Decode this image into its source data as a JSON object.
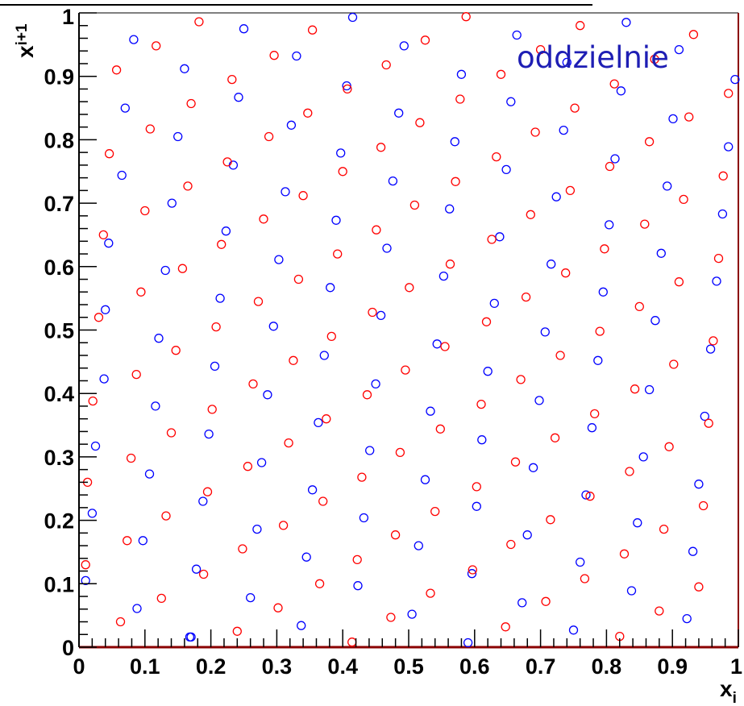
{
  "chart_data": {
    "type": "scatter",
    "title": "",
    "xlabel": "x",
    "xlabel_sub": "i",
    "ylabel": "x",
    "ylabel_sub": "i+1",
    "xlim": [
      0,
      1
    ],
    "ylim": [
      0,
      1
    ],
    "annotation": "oddzielnie",
    "x_ticks": [
      {
        "value": 0,
        "label": "0"
      },
      {
        "value": 0.1,
        "label": "0.1"
      },
      {
        "value": 0.2,
        "label": "0.2"
      },
      {
        "value": 0.3,
        "label": "0.3"
      },
      {
        "value": 0.4,
        "label": "0.4"
      },
      {
        "value": 0.5,
        "label": "0.5"
      },
      {
        "value": 0.6,
        "label": "0.6"
      },
      {
        "value": 0.7,
        "label": "0.7"
      },
      {
        "value": 0.8,
        "label": "0.8"
      },
      {
        "value": 0.9,
        "label": "0.9"
      },
      {
        "value": 1,
        "label": "1"
      }
    ],
    "y_ticks": [
      {
        "value": 0,
        "label": "0"
      },
      {
        "value": 0.1,
        "label": "0.1"
      },
      {
        "value": 0.2,
        "label": "0.2"
      },
      {
        "value": 0.3,
        "label": "0.3"
      },
      {
        "value": 0.4,
        "label": "0.4"
      },
      {
        "value": 0.5,
        "label": "0.5"
      },
      {
        "value": 0.6,
        "label": "0.6"
      },
      {
        "value": 0.7,
        "label": "0.7"
      },
      {
        "value": 0.8,
        "label": "0.8"
      },
      {
        "value": 0.9,
        "label": "0.9"
      },
      {
        "value": 1,
        "label": "1"
      }
    ],
    "series": [
      {
        "color": "#0000ff",
        "marker": "open-circle",
        "points": [
          [
            0.083,
            0.958
          ],
          [
            0.07,
            0.85
          ],
          [
            0.065,
            0.744
          ],
          [
            0.045,
            0.637
          ],
          [
            0.04,
            0.532
          ],
          [
            0.038,
            0.423
          ],
          [
            0.025,
            0.317
          ],
          [
            0.02,
            0.211
          ],
          [
            0.01,
            0.105
          ],
          [
            0.16,
            0.912
          ],
          [
            0.15,
            0.805
          ],
          [
            0.141,
            0.7
          ],
          [
            0.131,
            0.594
          ],
          [
            0.121,
            0.487
          ],
          [
            0.116,
            0.38
          ],
          [
            0.107,
            0.273
          ],
          [
            0.097,
            0.168
          ],
          [
            0.088,
            0.061
          ],
          [
            0.17,
            0.016
          ],
          [
            0.25,
            0.975
          ],
          [
            0.242,
            0.867
          ],
          [
            0.234,
            0.76
          ],
          [
            0.223,
            0.656
          ],
          [
            0.214,
            0.55
          ],
          [
            0.206,
            0.443
          ],
          [
            0.197,
            0.336
          ],
          [
            0.188,
            0.23
          ],
          [
            0.178,
            0.123
          ],
          [
            0.168,
            0.016
          ],
          [
            0.33,
            0.932
          ],
          [
            0.322,
            0.823
          ],
          [
            0.313,
            0.718
          ],
          [
            0.303,
            0.611
          ],
          [
            0.295,
            0.506
          ],
          [
            0.286,
            0.398
          ],
          [
            0.277,
            0.291
          ],
          [
            0.27,
            0.186
          ],
          [
            0.26,
            0.078
          ],
          [
            0.415,
            0.993
          ],
          [
            0.406,
            0.885
          ],
          [
            0.397,
            0.779
          ],
          [
            0.39,
            0.673
          ],
          [
            0.381,
            0.567
          ],
          [
            0.372,
            0.46
          ],
          [
            0.363,
            0.354
          ],
          [
            0.354,
            0.248
          ],
          [
            0.345,
            0.142
          ],
          [
            0.337,
            0.034
          ],
          [
            0.493,
            0.948
          ],
          [
            0.485,
            0.842
          ],
          [
            0.476,
            0.735
          ],
          [
            0.467,
            0.629
          ],
          [
            0.458,
            0.523
          ],
          [
            0.45,
            0.415
          ],
          [
            0.441,
            0.31
          ],
          [
            0.432,
            0.204
          ],
          [
            0.423,
            0.097
          ],
          [
            0.58,
            0.903
          ],
          [
            0.57,
            0.797
          ],
          [
            0.562,
            0.691
          ],
          [
            0.553,
            0.585
          ],
          [
            0.543,
            0.478
          ],
          [
            0.533,
            0.372
          ],
          [
            0.525,
            0.264
          ],
          [
            0.515,
            0.16
          ],
          [
            0.505,
            0.052
          ],
          [
            0.59,
            0.007
          ],
          [
            0.664,
            0.965
          ],
          [
            0.655,
            0.86
          ],
          [
            0.648,
            0.753
          ],
          [
            0.638,
            0.647
          ],
          [
            0.63,
            0.542
          ],
          [
            0.62,
            0.435
          ],
          [
            0.611,
            0.327
          ],
          [
            0.603,
            0.222
          ],
          [
            0.596,
            0.116
          ],
          [
            0.74,
            0.922
          ],
          [
            0.735,
            0.815
          ],
          [
            0.724,
            0.71
          ],
          [
            0.716,
            0.604
          ],
          [
            0.707,
            0.497
          ],
          [
            0.698,
            0.389
          ],
          [
            0.689,
            0.283
          ],
          [
            0.68,
            0.177
          ],
          [
            0.672,
            0.07
          ],
          [
            0.83,
            0.985
          ],
          [
            0.822,
            0.877
          ],
          [
            0.813,
            0.77
          ],
          [
            0.804,
            0.666
          ],
          [
            0.795,
            0.56
          ],
          [
            0.787,
            0.452
          ],
          [
            0.778,
            0.346
          ],
          [
            0.769,
            0.24
          ],
          [
            0.76,
            0.134
          ],
          [
            0.75,
            0.027
          ],
          [
            0.91,
            0.942
          ],
          [
            0.901,
            0.833
          ],
          [
            0.892,
            0.727
          ],
          [
            0.883,
            0.621
          ],
          [
            0.874,
            0.515
          ],
          [
            0.865,
            0.406
          ],
          [
            0.856,
            0.3
          ],
          [
            0.847,
            0.196
          ],
          [
            0.838,
            0.089
          ],
          [
            0.995,
            0.895
          ],
          [
            0.985,
            0.789
          ],
          [
            0.976,
            0.683
          ],
          [
            0.967,
            0.577
          ],
          [
            0.958,
            0.47
          ],
          [
            0.949,
            0.364
          ],
          [
            0.94,
            0.257
          ],
          [
            0.931,
            0.151
          ],
          [
            0.922,
            0.045
          ]
        ]
      },
      {
        "color": "#ff0000",
        "marker": "open-circle",
        "points": [
          [
            0.01,
            0.13
          ],
          [
            0.013,
            0.26
          ],
          [
            0.021,
            0.388
          ],
          [
            0.03,
            0.52
          ],
          [
            0.037,
            0.65
          ],
          [
            0.046,
            0.778
          ],
          [
            0.057,
            0.91
          ],
          [
            0.063,
            0.04
          ],
          [
            0.073,
            0.168
          ],
          [
            0.079,
            0.298
          ],
          [
            0.087,
            0.43
          ],
          [
            0.094,
            0.56
          ],
          [
            0.1,
            0.688
          ],
          [
            0.108,
            0.817
          ],
          [
            0.117,
            0.948
          ],
          [
            0.125,
            0.077
          ],
          [
            0.132,
            0.207
          ],
          [
            0.14,
            0.338
          ],
          [
            0.147,
            0.468
          ],
          [
            0.157,
            0.597
          ],
          [
            0.165,
            0.727
          ],
          [
            0.17,
            0.857
          ],
          [
            0.182,
            0.986
          ],
          [
            0.189,
            0.115
          ],
          [
            0.195,
            0.245
          ],
          [
            0.202,
            0.375
          ],
          [
            0.208,
            0.505
          ],
          [
            0.216,
            0.635
          ],
          [
            0.225,
            0.765
          ],
          [
            0.232,
            0.895
          ],
          [
            0.24,
            0.025
          ],
          [
            0.248,
            0.155
          ],
          [
            0.256,
            0.285
          ],
          [
            0.264,
            0.415
          ],
          [
            0.272,
            0.545
          ],
          [
            0.28,
            0.675
          ],
          [
            0.288,
            0.805
          ],
          [
            0.296,
            0.933
          ],
          [
            0.302,
            0.062
          ],
          [
            0.31,
            0.192
          ],
          [
            0.318,
            0.322
          ],
          [
            0.325,
            0.452
          ],
          [
            0.333,
            0.58
          ],
          [
            0.34,
            0.712
          ],
          [
            0.347,
            0.842
          ],
          [
            0.354,
            0.973
          ],
          [
            0.365,
            0.1
          ],
          [
            0.37,
            0.23
          ],
          [
            0.375,
            0.36
          ],
          [
            0.383,
            0.49
          ],
          [
            0.392,
            0.62
          ],
          [
            0.4,
            0.75
          ],
          [
            0.407,
            0.88
          ],
          [
            0.414,
            0.008
          ],
          [
            0.422,
            0.138
          ],
          [
            0.429,
            0.268
          ],
          [
            0.437,
            0.398
          ],
          [
            0.445,
            0.528
          ],
          [
            0.451,
            0.658
          ],
          [
            0.458,
            0.788
          ],
          [
            0.466,
            0.918
          ],
          [
            0.473,
            0.047
          ],
          [
            0.48,
            0.177
          ],
          [
            0.487,
            0.307
          ],
          [
            0.495,
            0.437
          ],
          [
            0.501,
            0.567
          ],
          [
            0.509,
            0.697
          ],
          [
            0.517,
            0.827
          ],
          [
            0.525,
            0.957
          ],
          [
            0.533,
            0.085
          ],
          [
            0.54,
            0.214
          ],
          [
            0.548,
            0.344
          ],
          [
            0.555,
            0.474
          ],
          [
            0.563,
            0.604
          ],
          [
            0.571,
            0.734
          ],
          [
            0.578,
            0.864
          ],
          [
            0.587,
            0.994
          ],
          [
            0.597,
            0.122
          ],
          [
            0.603,
            0.253
          ],
          [
            0.61,
            0.383
          ],
          [
            0.618,
            0.513
          ],
          [
            0.626,
            0.643
          ],
          [
            0.633,
            0.773
          ],
          [
            0.64,
            0.903
          ],
          [
            0.647,
            0.032
          ],
          [
            0.655,
            0.162
          ],
          [
            0.662,
            0.292
          ],
          [
            0.67,
            0.422
          ],
          [
            0.678,
            0.552
          ],
          [
            0.685,
            0.682
          ],
          [
            0.692,
            0.812
          ],
          [
            0.7,
            0.942
          ],
          [
            0.708,
            0.072
          ],
          [
            0.715,
            0.201
          ],
          [
            0.722,
            0.33
          ],
          [
            0.73,
            0.46
          ],
          [
            0.738,
            0.59
          ],
          [
            0.745,
            0.72
          ],
          [
            0.752,
            0.85
          ],
          [
            0.76,
            0.98
          ],
          [
            0.767,
            0.108
          ],
          [
            0.775,
            0.238
          ],
          [
            0.782,
            0.368
          ],
          [
            0.79,
            0.498
          ],
          [
            0.797,
            0.628
          ],
          [
            0.805,
            0.758
          ],
          [
            0.812,
            0.888
          ],
          [
            0.82,
            0.017
          ],
          [
            0.827,
            0.147
          ],
          [
            0.835,
            0.277
          ],
          [
            0.843,
            0.407
          ],
          [
            0.85,
            0.537
          ],
          [
            0.858,
            0.667
          ],
          [
            0.865,
            0.797
          ],
          [
            0.873,
            0.927
          ],
          [
            0.88,
            0.057
          ],
          [
            0.887,
            0.186
          ],
          [
            0.895,
            0.316
          ],
          [
            0.902,
            0.446
          ],
          [
            0.91,
            0.576
          ],
          [
            0.917,
            0.706
          ],
          [
            0.925,
            0.836
          ],
          [
            0.932,
            0.966
          ],
          [
            0.94,
            0.095
          ],
          [
            0.947,
            0.223
          ],
          [
            0.955,
            0.353
          ],
          [
            0.962,
            0.483
          ],
          [
            0.97,
            0.613
          ],
          [
            0.977,
            0.743
          ],
          [
            0.985,
            0.873
          ]
        ]
      }
    ]
  }
}
